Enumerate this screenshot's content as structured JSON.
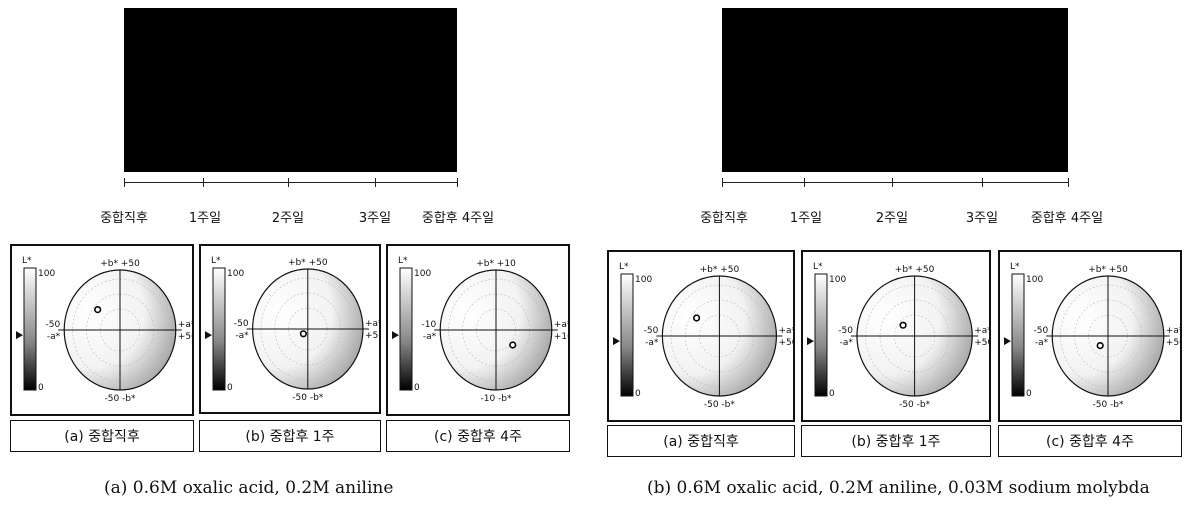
{
  "figures": [
    {
      "timeline": [
        "중합직후",
        "1주일",
        "2주일",
        "3주일",
        "중합후 4주일"
      ],
      "panels": [
        {
          "label": "(a) 중합직후",
          "lstar_top": "100",
          "lstar_bottom": "0",
          "lstar_axis": "L*",
          "top": "+b* +50",
          "bottom": "-50 -b*",
          "left_val": "-50",
          "left_axis": "-a*",
          "right_axis": "+a*",
          "right_val": "+50",
          "point": {
            "a": -20,
            "b": 17
          }
        },
        {
          "label": "(b) 중합후 1주",
          "lstar_top": "100",
          "lstar_bottom": "0",
          "lstar_axis": "L*",
          "top": "+b* +50",
          "bottom": "-50 -b*",
          "left_val": "-50",
          "left_axis": "-a*",
          "right_axis": "+a*",
          "right_val": "+50",
          "point": {
            "a": -4,
            "b": -4
          }
        },
        {
          "label": "(c) 중합후 4주",
          "lstar_top": "100",
          "lstar_bottom": "0",
          "lstar_axis": "L*",
          "top": "+b* +10",
          "bottom": "-10 -b*",
          "left_val": "-10",
          "left_axis": "-a*",
          "right_axis": "+a*",
          "right_val": "+10",
          "point": {
            "a": 3,
            "b": -2.5
          }
        }
      ],
      "caption": "(a) 0.6M oxalic acid, 0.2M aniline"
    },
    {
      "timeline": [
        "중합직후",
        "1주일",
        "2주일",
        "3주일",
        "중합후 4주일"
      ],
      "panels": [
        {
          "label": "(a) 중합직후",
          "lstar_top": "100",
          "lstar_bottom": "0",
          "lstar_axis": "L*",
          "top": "+b* +50",
          "bottom": "-50 -b*",
          "left_val": "-50",
          "left_axis": "-a*",
          "right_axis": "+a*",
          "right_val": "+50",
          "point": {
            "a": -20,
            "b": 15
          }
        },
        {
          "label": "(b) 중합후 1주",
          "lstar_top": "100",
          "lstar_bottom": "0",
          "lstar_axis": "L*",
          "top": "+b* +50",
          "bottom": "-50 -b*",
          "left_val": "-50",
          "left_axis": "-a*",
          "right_axis": "+a*",
          "right_val": "+50",
          "point": {
            "a": -10,
            "b": 9
          }
        },
        {
          "label": "(c) 중합후 4주",
          "lstar_top": "100",
          "lstar_bottom": "0",
          "lstar_axis": "L*",
          "top": "+b* +50",
          "bottom": "-50 -b*",
          "left_val": "-50",
          "left_axis": "-a*",
          "right_axis": "+a*",
          "right_val": "+50",
          "point": {
            "a": -7,
            "b": -8
          }
        }
      ],
      "caption": "(b) 0.6M oxalic acid, 0.2M aniline, 0.03M sodium molybda"
    }
  ]
}
